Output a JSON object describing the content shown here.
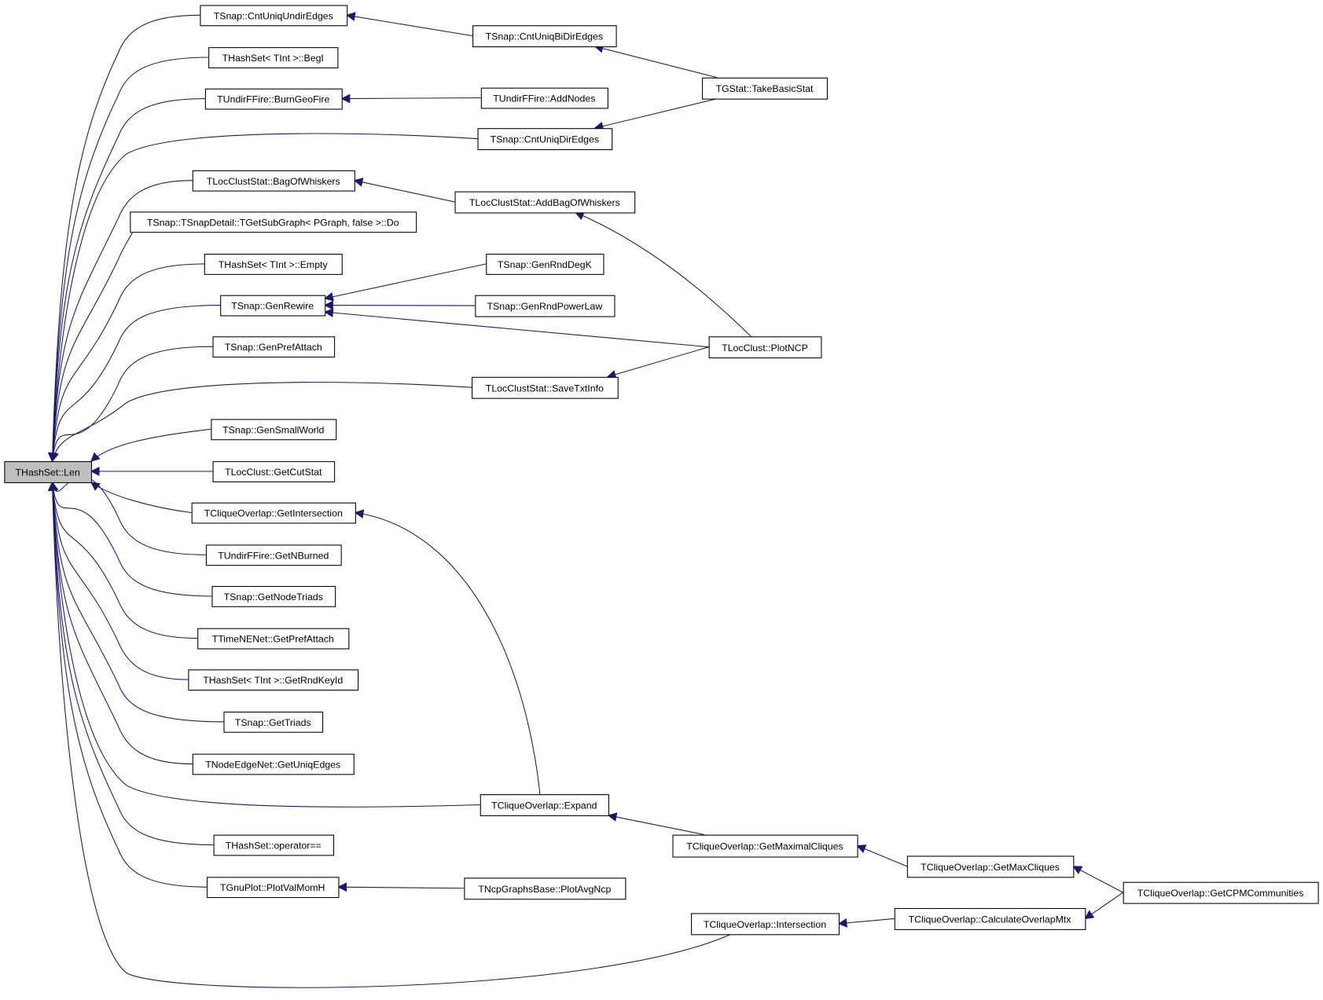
{
  "graph": {
    "edge_color": "#191970",
    "highlight_fill": "#bfbfbf",
    "nodes": [
      {
        "id": "len",
        "label": "THashSet::Len",
        "highlighted": true
      },
      {
        "id": "cntUndir",
        "label": "TSnap::CntUniqUndirEdges"
      },
      {
        "id": "begI",
        "label": "THashSet< TInt >::BegI"
      },
      {
        "id": "burnGeo",
        "label": "TUndirFFire::BurnGeoFire"
      },
      {
        "id": "bagWhisk",
        "label": "TLocClustStat::BagOfWhiskers"
      },
      {
        "id": "subGraphDo",
        "label": "TSnap::TSnapDetail::TGetSubGraph< PGraph, false >::Do"
      },
      {
        "id": "empty",
        "label": "THashSet< TInt >::Empty"
      },
      {
        "id": "genRewire",
        "label": "TSnap::GenRewire"
      },
      {
        "id": "genPref",
        "label": "TSnap::GenPrefAttach"
      },
      {
        "id": "genSmall",
        "label": "TSnap::GenSmallWorld"
      },
      {
        "id": "cutStat",
        "label": "TLocClust::GetCutStat"
      },
      {
        "id": "getInter",
        "label": "TCliqueOverlap::GetIntersection"
      },
      {
        "id": "nBurned",
        "label": "TUndirFFire::GetNBurned"
      },
      {
        "id": "nodeTriads",
        "label": "TSnap::GetNodeTriads"
      },
      {
        "id": "timePref",
        "label": "TTimeNENet::GetPrefAttach"
      },
      {
        "id": "rndKey",
        "label": "THashSet< TInt >::GetRndKeyId"
      },
      {
        "id": "triads",
        "label": "TSnap::GetTriads"
      },
      {
        "id": "uniqEdges",
        "label": "TNodeEdgeNet::GetUniqEdges"
      },
      {
        "id": "opEq",
        "label": "THashSet::operator=="
      },
      {
        "id": "plotVal",
        "label": "TGnuPlot::PlotValMomH"
      },
      {
        "id": "cntBiDir",
        "label": "TSnap::CntUniqBiDirEdges"
      },
      {
        "id": "addNodes",
        "label": "TUndirFFire::AddNodes"
      },
      {
        "id": "cntDir",
        "label": "TSnap::CntUniqDirEdges"
      },
      {
        "id": "addBag",
        "label": "TLocClustStat::AddBagOfWhiskers"
      },
      {
        "id": "rndDegK",
        "label": "TSnap::GenRndDegK"
      },
      {
        "id": "rndPow",
        "label": "TSnap::GenRndPowerLaw"
      },
      {
        "id": "saveTxt",
        "label": "TLocClustStat::SaveTxtInfo"
      },
      {
        "id": "expand",
        "label": "TCliqueOverlap::Expand"
      },
      {
        "id": "plotAvg",
        "label": "TNcpGraphsBase::PlotAvgNcp"
      },
      {
        "id": "intersection",
        "label": "TCliqueOverlap::Intersection"
      },
      {
        "id": "takeBasic",
        "label": "TGStat::TakeBasicStat"
      },
      {
        "id": "plotNCP",
        "label": "TLocClust::PlotNCP"
      },
      {
        "id": "maximal",
        "label": "TCliqueOverlap::GetMaximalCliques"
      },
      {
        "id": "maxCliques",
        "label": "TCliqueOverlap::GetMaxCliques"
      },
      {
        "id": "calcOverlap",
        "label": "TCliqueOverlap::CalculateOverlapMtx"
      },
      {
        "id": "cpm",
        "label": "TCliqueOverlap::GetCPMCommunities"
      }
    ],
    "edges": [
      [
        "cntUndir",
        "len"
      ],
      [
        "begI",
        "len"
      ],
      [
        "burnGeo",
        "len"
      ],
      [
        "cntDir",
        "len"
      ],
      [
        "bagWhisk",
        "len"
      ],
      [
        "subGraphDo",
        "len"
      ],
      [
        "empty",
        "len"
      ],
      [
        "genRewire",
        "len"
      ],
      [
        "genPref",
        "len"
      ],
      [
        "saveTxt",
        "len"
      ],
      [
        "genSmall",
        "len"
      ],
      [
        "cutStat",
        "len"
      ],
      [
        "getInter",
        "len"
      ],
      [
        "nBurned",
        "len"
      ],
      [
        "nodeTriads",
        "len"
      ],
      [
        "timePref",
        "len"
      ],
      [
        "rndKey",
        "len"
      ],
      [
        "triads",
        "len"
      ],
      [
        "uniqEdges",
        "len"
      ],
      [
        "expand",
        "len"
      ],
      [
        "opEq",
        "len"
      ],
      [
        "plotVal",
        "len"
      ],
      [
        "intersection",
        "len"
      ],
      [
        "cntBiDir",
        "cntUndir"
      ],
      [
        "takeBasic",
        "cntBiDir"
      ],
      [
        "addNodes",
        "burnGeo"
      ],
      [
        "takeBasic",
        "cntDir"
      ],
      [
        "addBag",
        "bagWhisk"
      ],
      [
        "plotNCP",
        "addBag"
      ],
      [
        "rndDegK",
        "genRewire"
      ],
      [
        "rndPow",
        "genRewire"
      ],
      [
        "plotNCP",
        "genRewire"
      ],
      [
        "plotNCP",
        "saveTxt"
      ],
      [
        "expand",
        "getInter"
      ],
      [
        "maximal",
        "expand"
      ],
      [
        "maxCliques",
        "maximal"
      ],
      [
        "cpm",
        "maxCliques"
      ],
      [
        "plotAvg",
        "plotVal"
      ],
      [
        "calcOverlap",
        "intersection"
      ],
      [
        "cpm",
        "calcOverlap"
      ]
    ]
  }
}
